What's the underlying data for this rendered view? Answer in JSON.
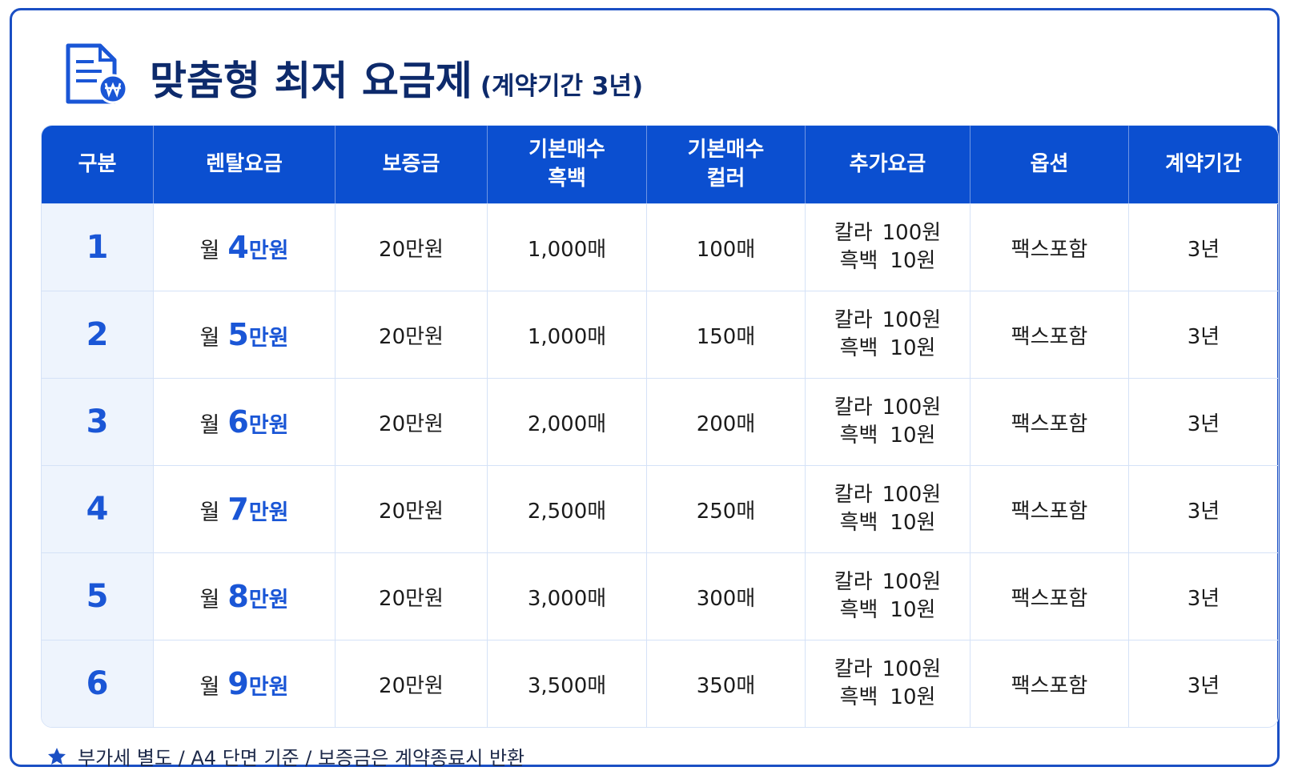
{
  "header": {
    "title": "맞춤형 최저 요금제",
    "subtitle": "(계약기간 3년)"
  },
  "table": {
    "columns": [
      [
        "구분"
      ],
      [
        "렌탈요금"
      ],
      [
        "보증금"
      ],
      [
        "기본매수",
        "흑백"
      ],
      [
        "기본매수",
        "컬러"
      ],
      [
        "추가요금"
      ],
      [
        "옵션"
      ],
      [
        "계약기간"
      ]
    ],
    "rows": [
      {
        "no": "1",
        "rent": [
          "월",
          "4",
          "만원"
        ],
        "deposit": "20만원",
        "mono": "1,000매",
        "color": "100매",
        "extra": [
          [
            "칼라",
            "100원"
          ],
          [
            "흑백",
            "10원"
          ]
        ],
        "option": "팩스포함",
        "term": "3년"
      },
      {
        "no": "2",
        "rent": [
          "월",
          "5",
          "만원"
        ],
        "deposit": "20만원",
        "mono": "1,000매",
        "color": "150매",
        "extra": [
          [
            "칼라",
            "100원"
          ],
          [
            "흑백",
            "10원"
          ]
        ],
        "option": "팩스포함",
        "term": "3년"
      },
      {
        "no": "3",
        "rent": [
          "월",
          "6",
          "만원"
        ],
        "deposit": "20만원",
        "mono": "2,000매",
        "color": "200매",
        "extra": [
          [
            "칼라",
            "100원"
          ],
          [
            "흑백",
            "10원"
          ]
        ],
        "option": "팩스포함",
        "term": "3년"
      },
      {
        "no": "4",
        "rent": [
          "월",
          "7",
          "만원"
        ],
        "deposit": "20만원",
        "mono": "2,500매",
        "color": "250매",
        "extra": [
          [
            "칼라",
            "100원"
          ],
          [
            "흑백",
            "10원"
          ]
        ],
        "option": "팩스포함",
        "term": "3년"
      },
      {
        "no": "5",
        "rent": [
          "월",
          "8",
          "만원"
        ],
        "deposit": "20만원",
        "mono": "3,000매",
        "color": "300매",
        "extra": [
          [
            "칼라",
            "100원"
          ],
          [
            "흑백",
            "10원"
          ]
        ],
        "option": "팩스포함",
        "term": "3년"
      },
      {
        "no": "6",
        "rent": [
          "월",
          "9",
          "만원"
        ],
        "deposit": "20만원",
        "mono": "3,500매",
        "color": "350매",
        "extra": [
          [
            "칼라",
            "100원"
          ],
          [
            "흑백",
            "10원"
          ]
        ],
        "option": "팩스포함",
        "term": "3년"
      }
    ]
  },
  "footer": {
    "note": "부가세 별도 / A4 단면 기준 / 보증금은 계약종료시 반환"
  }
}
